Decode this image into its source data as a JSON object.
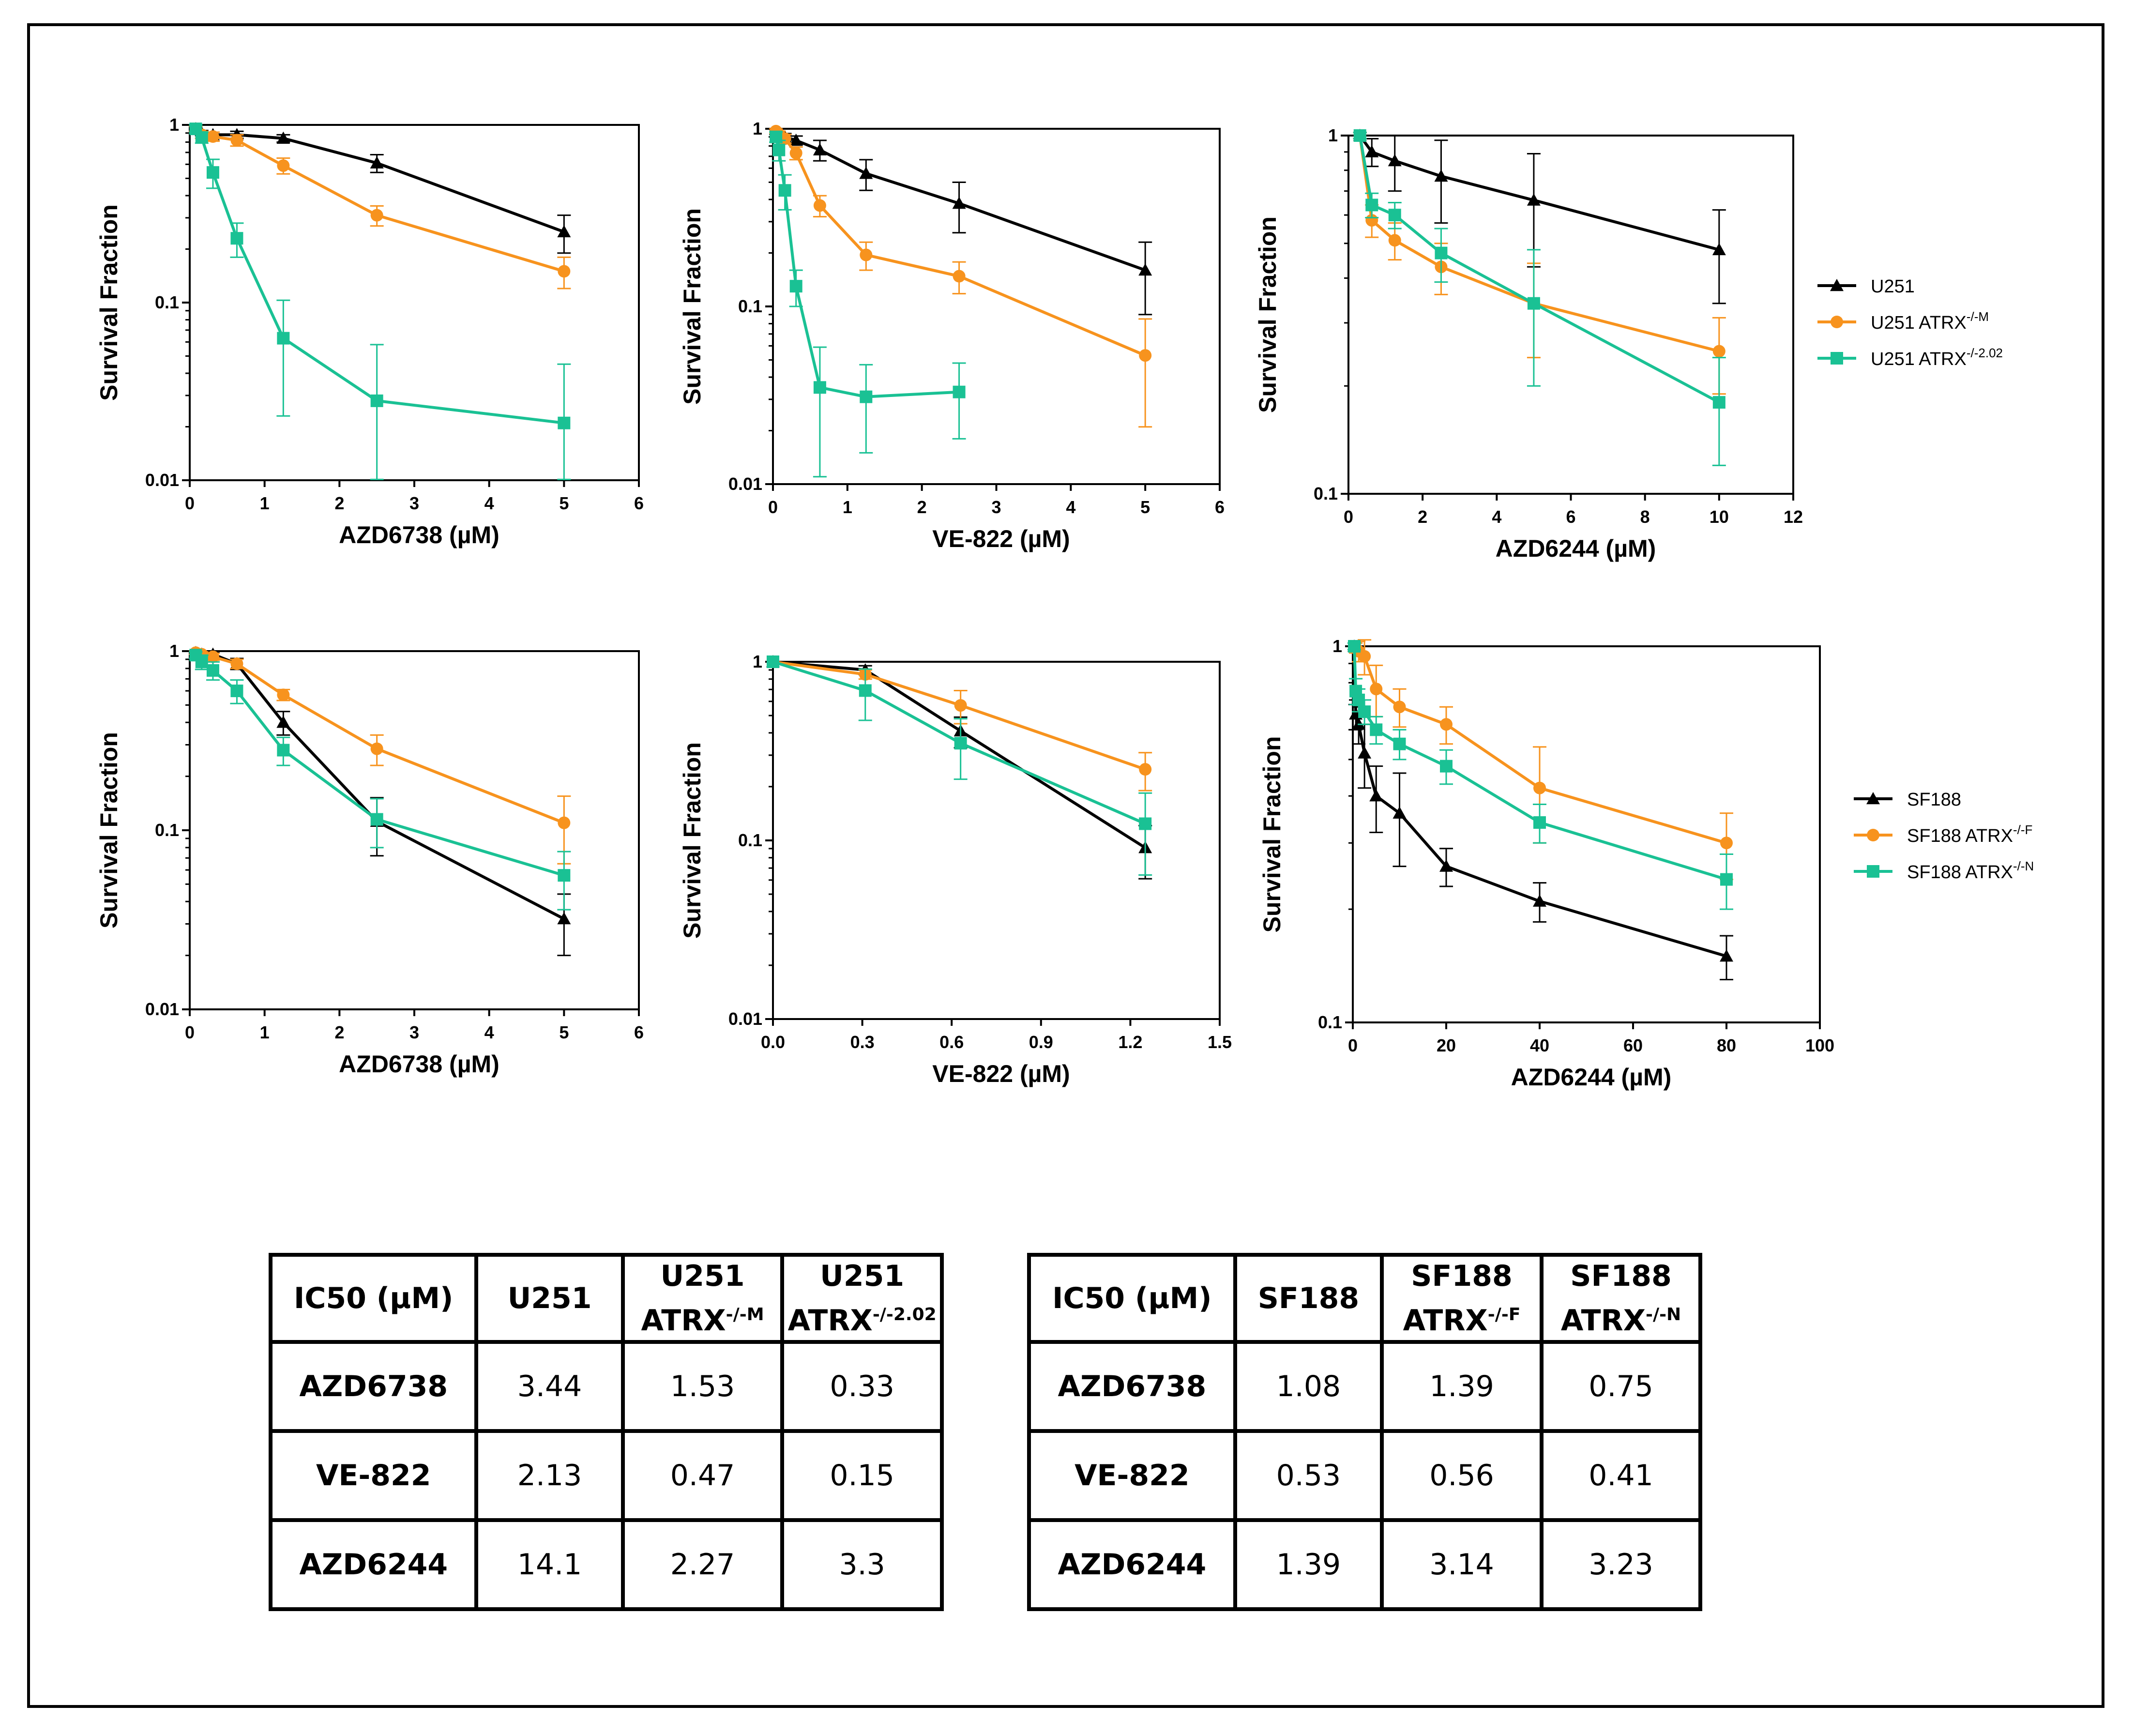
{
  "colors": {
    "U251": "#000000",
    "ATRX_M": "#f7931e",
    "ATRX_2": "#1ac194"
  },
  "legends": [
    {
      "items": [
        {
          "base": "U251",
          "sup": "",
          "color": "#000000",
          "marker": "triangle"
        },
        {
          "base": "U251 ATRX",
          "sup": "-/-M",
          "color": "#f7931e",
          "marker": "circle"
        },
        {
          "base": "U251 ATRX",
          "sup": "-/-2.02",
          "color": "#1ac194",
          "marker": "square"
        }
      ]
    },
    {
      "items": [
        {
          "base": "SF188",
          "sup": "",
          "color": "#000000",
          "marker": "triangle"
        },
        {
          "base": "SF188 ATRX",
          "sup": "-/-F",
          "color": "#f7931e",
          "marker": "circle"
        },
        {
          "base": "SF188 ATRX",
          "sup": "-/-N",
          "color": "#1ac194",
          "marker": "square"
        }
      ]
    }
  ],
  "chart_data": [
    {
      "type": "line",
      "yscale": "log",
      "xlabel": "AZD6738 (µM)",
      "ylabel": "Survival Fraction",
      "xlim": [
        0,
        6
      ],
      "ylim": [
        0.01,
        1
      ],
      "xticks": [
        "0",
        "1",
        "2",
        "3",
        "4",
        "5",
        "6"
      ],
      "yticks": [
        "0.01",
        "0.1",
        "1"
      ],
      "series": [
        {
          "name": "U251",
          "marker": "triangle",
          "color": "#000000",
          "x": [
            0.08,
            0.16,
            0.31,
            0.63,
            1.25,
            2.5,
            5
          ],
          "y": [
            0.95,
            0.9,
            0.88,
            0.88,
            0.84,
            0.61,
            0.25
          ],
          "err": [
            0.03,
            0.03,
            0.03,
            0.04,
            0.04,
            0.07,
            0.06
          ]
        },
        {
          "name": "U251 ATRX-/-M",
          "marker": "circle",
          "color": "#f7931e",
          "x": [
            0.08,
            0.16,
            0.31,
            0.63,
            1.25,
            2.5,
            5
          ],
          "y": [
            0.95,
            0.88,
            0.86,
            0.82,
            0.59,
            0.31,
            0.15
          ],
          "err": [
            0.03,
            0.04,
            0.05,
            0.06,
            0.06,
            0.04,
            0.03
          ]
        },
        {
          "name": "U251 ATRX-/-2.02",
          "marker": "square",
          "color": "#1ac194",
          "x": [
            0.08,
            0.16,
            0.31,
            0.63,
            1.25,
            2.5,
            5
          ],
          "y": [
            0.95,
            0.85,
            0.54,
            0.23,
            0.063,
            0.028,
            0.021
          ],
          "err": [
            0.05,
            0.06,
            0.1,
            0.05,
            0.04,
            0.03,
            0.024
          ]
        }
      ]
    },
    {
      "type": "line",
      "yscale": "log",
      "xlabel": "VE-822 (µM)",
      "ylabel": "Survival Fraction",
      "xlim": [
        0,
        6
      ],
      "ylim": [
        0.01,
        1
      ],
      "xticks": [
        "0",
        "1",
        "2",
        "3",
        "4",
        "5",
        "6"
      ],
      "yticks": [
        "0.01",
        "0.1",
        "1"
      ],
      "series": [
        {
          "name": "U251",
          "marker": "triangle",
          "color": "#000000",
          "x": [
            0.04,
            0.08,
            0.16,
            0.31,
            0.63,
            1.25,
            2.5,
            5
          ],
          "y": [
            0.96,
            0.93,
            0.9,
            0.86,
            0.76,
            0.56,
            0.38,
            0.16
          ],
          "err": [
            0.03,
            0.03,
            0.04,
            0.05,
            0.1,
            0.11,
            0.12,
            0.07
          ]
        },
        {
          "name": "U251 ATRX-/-M",
          "marker": "circle",
          "color": "#f7931e",
          "x": [
            0.04,
            0.08,
            0.16,
            0.31,
            0.63,
            1.25,
            2.5,
            5
          ],
          "y": [
            0.97,
            0.93,
            0.88,
            0.73,
            0.37,
            0.195,
            0.148,
            0.053
          ],
          "err": [
            0.03,
            0.04,
            0.05,
            0.06,
            0.05,
            0.035,
            0.03,
            0.032
          ]
        },
        {
          "name": "U251 ATRX-/-2.02",
          "marker": "square",
          "color": "#1ac194",
          "x": [
            0.04,
            0.08,
            0.16,
            0.31,
            0.63,
            1.25,
            2.5
          ],
          "y": [
            0.9,
            0.76,
            0.45,
            0.13,
            0.035,
            0.031,
            0.033
          ],
          "err": [
            0.06,
            0.1,
            0.1,
            0.03,
            0.024,
            0.016,
            0.015
          ]
        }
      ]
    },
    {
      "type": "line",
      "yscale": "log",
      "xlabel": "AZD6244 (µM)",
      "ylabel": "Survival Fraction",
      "xlim": [
        0,
        12
      ],
      "ylim": [
        0.1,
        1
      ],
      "xticks": [
        "0",
        "2",
        "4",
        "6",
        "8",
        "10",
        "12"
      ],
      "yticks": [
        "0.1",
        "1"
      ],
      "series": [
        {
          "name": "U251",
          "marker": "triangle",
          "color": "#000000",
          "x": [
            0.31,
            0.63,
            1.25,
            2.5,
            5,
            10
          ],
          "y": [
            1.0,
            0.9,
            0.85,
            0.77,
            0.66,
            0.48
          ],
          "err": [
            0.02,
            0.08,
            0.15,
            0.2,
            0.23,
            0.14
          ]
        },
        {
          "name": "U251 ATRX-/-M",
          "marker": "circle",
          "color": "#f7931e",
          "x": [
            0.31,
            0.63,
            1.25,
            2.5,
            5,
            10
          ],
          "y": [
            1.0,
            0.58,
            0.51,
            0.43,
            0.34,
            0.25
          ],
          "err": [
            0.02,
            0.06,
            0.06,
            0.07,
            0.1,
            0.06
          ]
        },
        {
          "name": "U251 ATRX-/-2.02",
          "marker": "square",
          "color": "#1ac194",
          "x": [
            0.31,
            0.63,
            1.25,
            2.5,
            5,
            10
          ],
          "y": [
            1.0,
            0.64,
            0.6,
            0.47,
            0.34,
            0.18
          ],
          "err": [
            0.02,
            0.05,
            0.05,
            0.08,
            0.14,
            0.06
          ]
        }
      ]
    },
    {
      "type": "line",
      "yscale": "log",
      "xlabel": "AZD6738 (µM)",
      "ylabel": "Survival Fraction",
      "xlim": [
        0,
        6
      ],
      "ylim": [
        0.01,
        1
      ],
      "xticks": [
        "0",
        "1",
        "2",
        "3",
        "4",
        "5",
        "6"
      ],
      "yticks": [
        "0.01",
        "0.1",
        "1"
      ],
      "series": [
        {
          "name": "SF188",
          "marker": "triangle",
          "color": "#000000",
          "x": [
            0.08,
            0.16,
            0.31,
            0.63,
            1.25,
            2.5,
            5
          ],
          "y": [
            0.98,
            0.96,
            0.96,
            0.85,
            0.4,
            0.112,
            0.032
          ],
          "err": [
            0.02,
            0.03,
            0.03,
            0.06,
            0.06,
            0.04,
            0.012
          ]
        },
        {
          "name": "SF188 ATRX-/-F",
          "marker": "circle",
          "color": "#f7931e",
          "x": [
            0.08,
            0.16,
            0.31,
            0.63,
            1.25,
            2.5,
            5
          ],
          "y": [
            0.98,
            0.96,
            0.93,
            0.85,
            0.57,
            0.285,
            0.11
          ],
          "err": [
            0.02,
            0.03,
            0.04,
            0.05,
            0.04,
            0.055,
            0.045
          ]
        },
        {
          "name": "SF188 ATRX-/-N",
          "marker": "square",
          "color": "#1ac194",
          "x": [
            0.08,
            0.16,
            0.31,
            0.63,
            1.25,
            2.5,
            5
          ],
          "y": [
            0.95,
            0.87,
            0.78,
            0.6,
            0.28,
            0.115,
            0.056
          ],
          "err": [
            0.04,
            0.08,
            0.09,
            0.09,
            0.05,
            0.035,
            0.02
          ]
        }
      ]
    },
    {
      "type": "line",
      "yscale": "log",
      "xlabel": "VE-822 (µM)",
      "ylabel": "Survival Fraction",
      "xlim": [
        0,
        1.5
      ],
      "ylim": [
        0.01,
        1
      ],
      "xticks": [
        "0.0",
        "0.3",
        "0.6",
        "0.9",
        "1.2",
        "1.5"
      ],
      "yticks": [
        "0.01",
        "0.1",
        "1"
      ],
      "series": [
        {
          "name": "SF188",
          "marker": "triangle",
          "color": "#000000",
          "x": [
            0,
            0.31,
            0.63,
            1.25
          ],
          "y": [
            1.0,
            0.9,
            0.41,
            0.091
          ],
          "err": [
            0.01,
            0.05,
            0.08,
            0.03
          ]
        },
        {
          "name": "SF188 ATRX-/-F",
          "marker": "circle",
          "color": "#f7931e",
          "x": [
            0,
            0.31,
            0.63,
            1.25
          ],
          "y": [
            1.0,
            0.85,
            0.57,
            0.25
          ],
          "err": [
            0.01,
            0.05,
            0.12,
            0.06
          ]
        },
        {
          "name": "SF188 ATRX-/-N",
          "marker": "square",
          "color": "#1ac194",
          "x": [
            0,
            0.31,
            0.63,
            1.25
          ],
          "y": [
            1.0,
            0.69,
            0.35,
            0.124
          ],
          "err": [
            0.01,
            0.22,
            0.13,
            0.06
          ]
        }
      ]
    },
    {
      "type": "line",
      "yscale": "log",
      "xlabel": "AZD6244 (µM)",
      "ylabel": "Survival Fraction",
      "xlim": [
        0,
        100
      ],
      "ylim": [
        0.1,
        1
      ],
      "xticks": [
        "0",
        "20",
        "40",
        "60",
        "80",
        "100"
      ],
      "yticks": [
        "0.1",
        "1"
      ],
      "series": [
        {
          "name": "SF188",
          "marker": "triangle",
          "color": "#000000",
          "x": [
            0.31,
            0.63,
            1.25,
            2.5,
            5,
            10,
            20,
            40,
            80
          ],
          "y": [
            1.0,
            0.66,
            0.62,
            0.52,
            0.4,
            0.36,
            0.26,
            0.21,
            0.15
          ],
          "err": [
            0.02,
            0.06,
            0.07,
            0.1,
            0.08,
            0.1,
            0.03,
            0.025,
            0.02
          ]
        },
        {
          "name": "SF188 ATRX-/-F",
          "marker": "circle",
          "color": "#f7931e",
          "x": [
            0.31,
            0.63,
            1.25,
            2.5,
            5,
            10,
            20,
            40,
            80
          ],
          "y": [
            1.0,
            0.99,
            0.97,
            0.94,
            0.77,
            0.69,
            0.62,
            0.42,
            0.3
          ],
          "err": [
            0.02,
            0.03,
            0.06,
            0.1,
            0.12,
            0.08,
            0.07,
            0.12,
            0.06
          ]
        },
        {
          "name": "SF188 ATRX-/-N",
          "marker": "square",
          "color": "#1ac194",
          "x": [
            0.31,
            0.63,
            1.25,
            2.5,
            5,
            10,
            20,
            40,
            80
          ],
          "y": [
            1.0,
            0.76,
            0.72,
            0.67,
            0.6,
            0.55,
            0.48,
            0.34,
            0.24
          ],
          "err": [
            0.02,
            0.06,
            0.05,
            0.05,
            0.05,
            0.05,
            0.05,
            0.04,
            0.04
          ]
        }
      ]
    }
  ],
  "tables": [
    {
      "header": [
        {
          "text": "IC50 (µM)",
          "sup": ""
        },
        {
          "text": "U251",
          "sup": ""
        },
        {
          "line1": "U251",
          "line2": "ATRX",
          "sup": "-/-M"
        },
        {
          "line1": "U251",
          "line2": "ATRX",
          "sup": "-/-2.02"
        }
      ],
      "rows": [
        {
          "label": "AZD6738",
          "values": [
            "3.44",
            "1.53",
            "0.33"
          ]
        },
        {
          "label": "VE-822",
          "values": [
            "2.13",
            "0.47",
            "0.15"
          ]
        },
        {
          "label": "AZD6244",
          "values": [
            "14.1",
            "2.27",
            "3.3"
          ]
        }
      ]
    },
    {
      "header": [
        {
          "text": "IC50 (µM)",
          "sup": ""
        },
        {
          "text": "SF188",
          "sup": ""
        },
        {
          "line1": "SF188",
          "line2": "ATRX",
          "sup": "-/-F"
        },
        {
          "line1": "SF188",
          "line2": "ATRX",
          "sup": "-/-N"
        }
      ],
      "rows": [
        {
          "label": "AZD6738",
          "values": [
            "1.08",
            "1.39",
            "0.75"
          ]
        },
        {
          "label": "VE-822",
          "values": [
            "0.53",
            "0.56",
            "0.41"
          ]
        },
        {
          "label": "AZD6244",
          "values": [
            "1.39",
            "3.14",
            "3.23"
          ]
        }
      ]
    }
  ]
}
